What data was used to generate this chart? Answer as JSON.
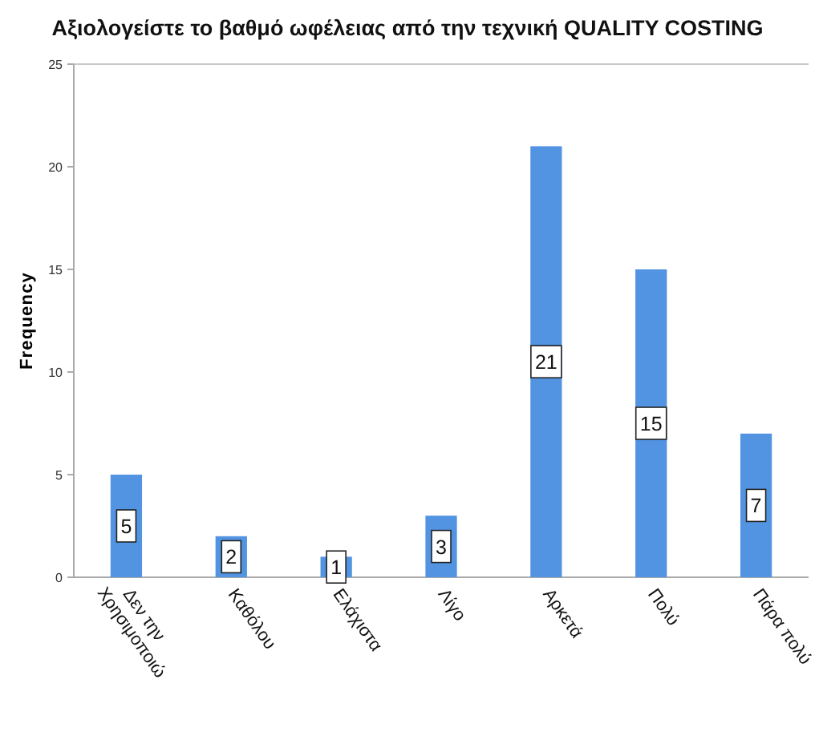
{
  "chart_data": {
    "type": "bar",
    "title": "Αξιολογείστε το βαθμό ωφέλειας από την τεχνική QUALITY COSTING",
    "ylabel": "Frequency",
    "categories": [
      "Δεν την Χρησιμοποιώ",
      "Καθόλου",
      "Ελάχιστα",
      "Λίγο",
      "Αρκετά",
      "Πολύ",
      "Πάρα πολύ"
    ],
    "values": [
      5,
      2,
      1,
      3,
      21,
      15,
      7
    ],
    "color": "#5294e2",
    "ylim": [
      0,
      25
    ],
    "yticks": [
      0,
      5,
      10,
      15,
      20,
      25
    ],
    "data_labels": true
  }
}
